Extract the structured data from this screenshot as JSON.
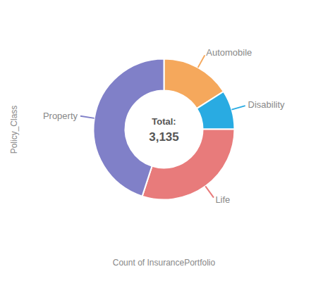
{
  "chart_data": {
    "type": "donut",
    "categories": [
      "Automobile",
      "Disability",
      "Life",
      "Property"
    ],
    "values": [
      502,
      282,
      940,
      1411
    ],
    "colors": [
      "#F5A85C",
      "#29ABE2",
      "#E87B7B",
      "#8080C8"
    ],
    "annotations": [
      "Total:",
      "3,135"
    ],
    "xlabel": "Count of InsurancePortfolio",
    "ylabel": "Policy_Class"
  }
}
